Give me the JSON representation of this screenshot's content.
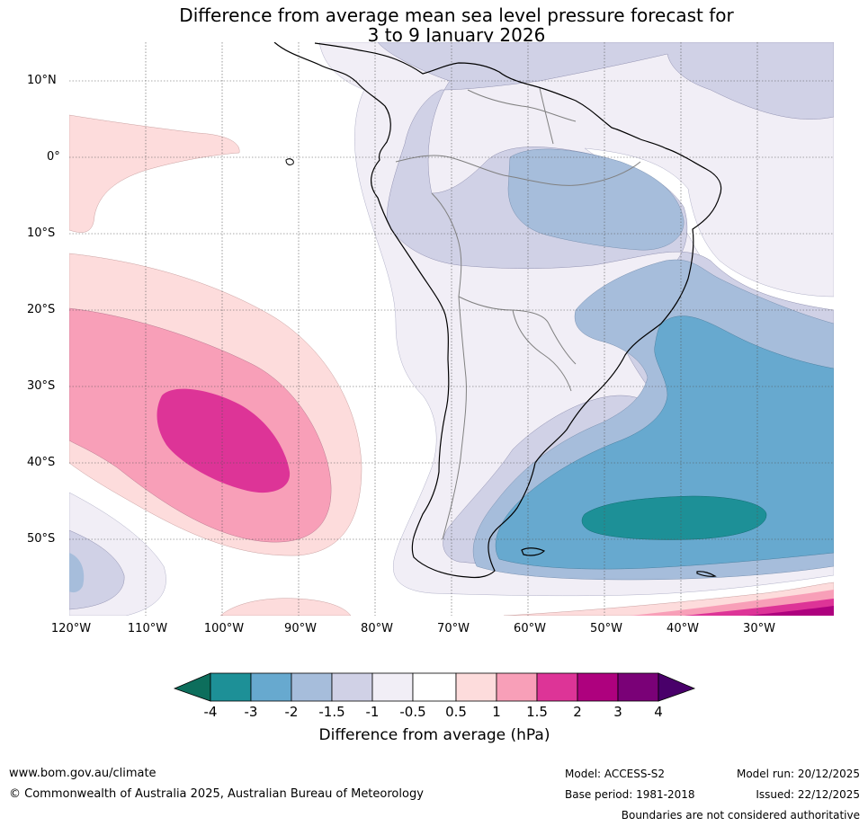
{
  "title": {
    "line1": "Difference from average mean sea level pressure forecast for",
    "line2": "3 to 9 January 2026"
  },
  "map": {
    "lat_labels": [
      "10°N",
      "0°",
      "10°S",
      "20°S",
      "30°S",
      "40°S",
      "50°S"
    ],
    "lon_labels": [
      "120°W",
      "110°W",
      "100°W",
      "90°W",
      "80°W",
      "70°W",
      "60°W",
      "50°W",
      "40°W",
      "30°W"
    ],
    "region": "South America and adjacent oceans"
  },
  "legend": {
    "ticks": [
      "-4",
      "-3",
      "-2",
      "-1.5",
      "-1",
      "-0.5",
      "0.5",
      "1",
      "1.5",
      "2",
      "3",
      "4"
    ],
    "colors": [
      "#0d6e5c",
      "#1d9097",
      "#67a9cf",
      "#a6bddb",
      "#d0d1e6",
      "#f1eef6",
      "#ffffff",
      "#fddcdc",
      "#f89fb8",
      "#dd3497",
      "#ae017e",
      "#7a0177",
      "#49006a"
    ],
    "label": "Difference from average (hPa)"
  },
  "footer": {
    "website": "www.bom.gov.au/climate",
    "copyright": "© Commonwealth of Australia 2025, Australian Bureau of Meteorology",
    "model": "Model: ACCESS-S2",
    "base_period": "Base period: 1981-2018",
    "model_run": "Model run: 20/12/2025",
    "issued": "Issued: 22/12/2025",
    "disclaimer": "Boundaries are not considered authoritative"
  }
}
